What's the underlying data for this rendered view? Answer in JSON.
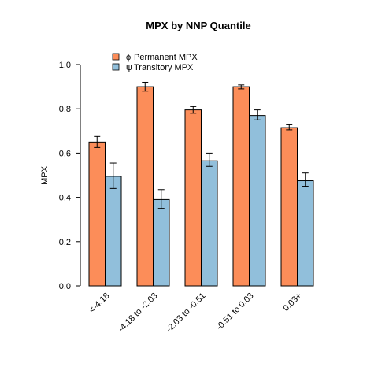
{
  "chart_data": {
    "type": "bar",
    "title": "MPX  by  NNP Quantile",
    "xlabel": "",
    "ylabel": "MPX",
    "ylim": [
      0,
      1.0
    ],
    "yticks": [
      "0.0",
      "0.2",
      "0.4",
      "0.6",
      "0.8",
      "1.0"
    ],
    "grid": false,
    "legend_position": "top-left",
    "categories": [
      "<-4.18",
      "-4.18 to -2.03",
      "-2.03 to -0.51",
      "-0.51 to 0.03",
      "0.03+"
    ],
    "series": [
      {
        "name": "Permanent MPX",
        "legend_symbol": "ϕ",
        "color": "#FC8D59",
        "values": [
          0.65,
          0.9,
          0.795,
          0.9,
          0.715
        ],
        "error_low": [
          0.625,
          0.88,
          0.78,
          0.89,
          0.705
        ],
        "error_high": [
          0.675,
          0.92,
          0.81,
          0.908,
          0.728
        ]
      },
      {
        "name": "Transitory MPX",
        "legend_symbol": "ψ",
        "color": "#91BFDB",
        "values": [
          0.495,
          0.39,
          0.565,
          0.77,
          0.475
        ],
        "error_low": [
          0.44,
          0.35,
          0.54,
          0.75,
          0.45
        ],
        "error_high": [
          0.555,
          0.435,
          0.6,
          0.795,
          0.51
        ]
      }
    ]
  }
}
